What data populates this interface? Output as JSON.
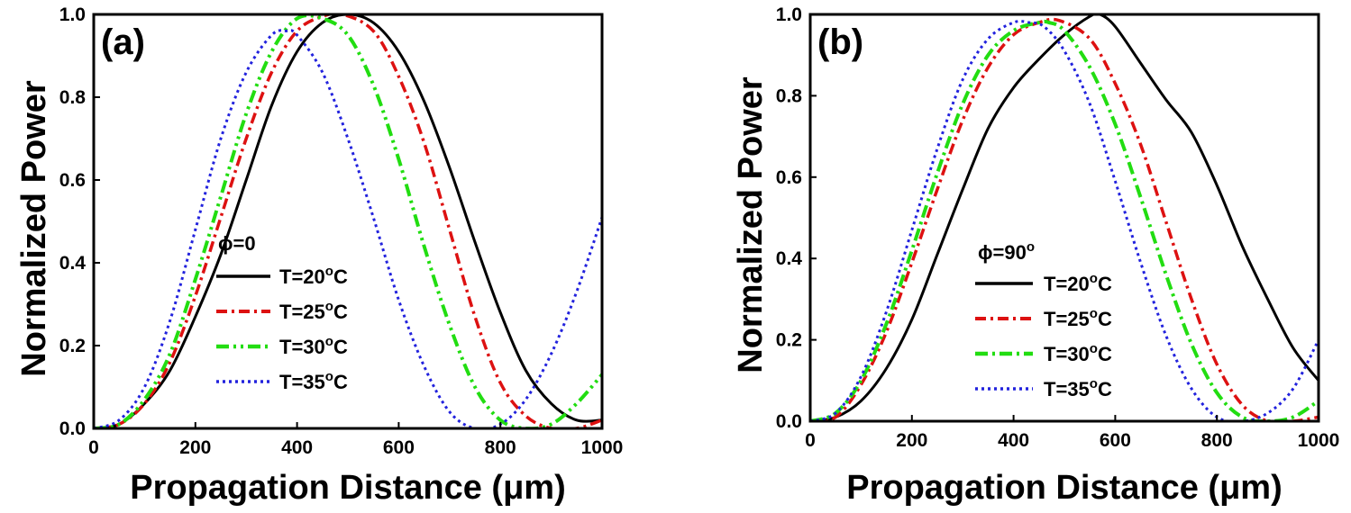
{
  "chart_data": [
    {
      "type": "line",
      "panel_label": "(a)",
      "xlabel": "Propagation Distance (μm)",
      "ylabel": "Normalized Power",
      "xlim": [
        0,
        1000
      ],
      "ylim": [
        0,
        1.0
      ],
      "xticks": [
        "0",
        "200",
        "400",
        "600",
        "800",
        "1000"
      ],
      "yticks": [
        "0.0",
        "0.2",
        "0.4",
        "0.6",
        "0.8",
        "1.0"
      ],
      "legend_title": "ϕ=0",
      "legend_location": "lower-left",
      "series": [
        {
          "name": "T=20°C",
          "label_main": "T=20",
          "label_sup": "o",
          "label_end": "C",
          "color": "#000000",
          "dash": "",
          "width": 3,
          "x": [
            0,
            50,
            100,
            150,
            200,
            250,
            300,
            350,
            400,
            450,
            500,
            550,
            600,
            650,
            700,
            750,
            800,
            850,
            900,
            950,
            1000
          ],
          "y": [
            0,
            0.01,
            0.06,
            0.14,
            0.27,
            0.42,
            0.6,
            0.78,
            0.91,
            0.98,
            1.0,
            0.98,
            0.91,
            0.79,
            0.63,
            0.45,
            0.28,
            0.14,
            0.06,
            0.02,
            0.02
          ]
        },
        {
          "name": "T=25°C",
          "label_main": "T=25",
          "label_sup": "o",
          "label_end": "C",
          "color": "#dd1111",
          "dash": "12 5 3 5",
          "width": 3.5,
          "x": [
            0,
            50,
            100,
            150,
            200,
            250,
            300,
            350,
            400,
            450,
            490,
            550,
            600,
            650,
            700,
            750,
            800,
            850,
            900,
            950,
            1000
          ],
          "y": [
            0,
            0.01,
            0.06,
            0.16,
            0.32,
            0.51,
            0.7,
            0.86,
            0.96,
            0.995,
            1.0,
            0.96,
            0.85,
            0.69,
            0.48,
            0.27,
            0.11,
            0.03,
            0.0,
            0.0,
            0.02
          ]
        },
        {
          "name": "T=30°C",
          "label_main": "T=30",
          "label_sup": "o",
          "label_end": "C",
          "color": "#22dd11",
          "dash": "14 5 3 5 3 5",
          "width": 4,
          "x": [
            0,
            50,
            100,
            150,
            200,
            250,
            300,
            350,
            400,
            450,
            500,
            550,
            600,
            650,
            700,
            750,
            800,
            850,
            900,
            950,
            1000
          ],
          "y": [
            0,
            0.01,
            0.07,
            0.18,
            0.36,
            0.56,
            0.76,
            0.91,
            0.99,
            0.99,
            0.95,
            0.83,
            0.65,
            0.44,
            0.25,
            0.1,
            0.02,
            0.0,
            0.01,
            0.06,
            0.13
          ]
        },
        {
          "name": "T=35°C",
          "label_main": "T=35",
          "label_sup": "o",
          "label_end": "C",
          "color": "#2222dd",
          "dash": "3 4",
          "width": 3,
          "x": [
            0,
            50,
            100,
            150,
            200,
            250,
            300,
            350,
            380,
            400,
            450,
            500,
            550,
            600,
            650,
            700,
            750,
            800,
            850,
            900,
            950,
            1000
          ],
          "y": [
            0,
            0.02,
            0.1,
            0.26,
            0.48,
            0.7,
            0.86,
            0.95,
            0.96,
            0.95,
            0.86,
            0.7,
            0.51,
            0.31,
            0.15,
            0.04,
            0.0,
            0.01,
            0.07,
            0.18,
            0.33,
            0.51
          ]
        }
      ]
    },
    {
      "type": "line",
      "panel_label": "(b)",
      "xlabel": "Propagation Distance (μm)",
      "ylabel": "Normalized Power",
      "xlim": [
        0,
        1000
      ],
      "ylim": [
        0,
        1.0
      ],
      "xticks": [
        "0",
        "200",
        "400",
        "600",
        "800",
        "1000"
      ],
      "yticks": [
        "0.0",
        "0.2",
        "0.4",
        "0.6",
        "0.8",
        "1.0"
      ],
      "legend_title": "ϕ=90",
      "legend_title_sup": "o",
      "legend_location": "lower-center",
      "series": [
        {
          "name": "T=20°C",
          "label_main": "T=20",
          "label_sup": "o",
          "label_end": "C",
          "color": "#000000",
          "dash": "",
          "width": 3,
          "x": [
            0,
            50,
            100,
            150,
            200,
            250,
            300,
            350,
            400,
            450,
            500,
            550,
            570,
            600,
            650,
            700,
            750,
            800,
            850,
            900,
            950,
            1000
          ],
          "y": [
            0,
            0.01,
            0.05,
            0.13,
            0.25,
            0.41,
            0.57,
            0.72,
            0.82,
            0.89,
            0.95,
            0.995,
            1.0,
            0.97,
            0.88,
            0.79,
            0.71,
            0.58,
            0.43,
            0.3,
            0.18,
            0.1
          ]
        },
        {
          "name": "T=25°C",
          "label_main": "T=25",
          "label_sup": "o",
          "label_end": "C",
          "color": "#dd1111",
          "dash": "12 5 3 5",
          "width": 3.5,
          "x": [
            0,
            50,
            100,
            150,
            200,
            250,
            300,
            350,
            400,
            450,
            490,
            550,
            600,
            650,
            700,
            750,
            800,
            850,
            900,
            950,
            1000
          ],
          "y": [
            0,
            0.01,
            0.09,
            0.22,
            0.39,
            0.57,
            0.74,
            0.87,
            0.95,
            0.98,
            0.985,
            0.94,
            0.83,
            0.68,
            0.49,
            0.3,
            0.14,
            0.04,
            0.0,
            0.0,
            0.01
          ]
        },
        {
          "name": "T=30°C",
          "label_main": "T=30",
          "label_sup": "o",
          "label_end": "C",
          "color": "#22dd11",
          "dash": "14 5 3 5",
          "width": 4,
          "x": [
            0,
            50,
            100,
            150,
            200,
            250,
            300,
            350,
            400,
            450,
            470,
            500,
            550,
            600,
            650,
            700,
            750,
            800,
            850,
            900,
            950,
            1000
          ],
          "y": [
            0,
            0.02,
            0.1,
            0.24,
            0.42,
            0.61,
            0.78,
            0.9,
            0.96,
            0.98,
            0.98,
            0.96,
            0.87,
            0.73,
            0.55,
            0.36,
            0.19,
            0.07,
            0.01,
            0.0,
            0.01,
            0.05
          ]
        },
        {
          "name": "T=35°C",
          "label_main": "T=35",
          "label_sup": "o",
          "label_end": "C",
          "color": "#2222dd",
          "dash": "3 4",
          "width": 3,
          "x": [
            0,
            50,
            100,
            150,
            200,
            250,
            300,
            350,
            400,
            430,
            460,
            500,
            550,
            600,
            650,
            700,
            750,
            800,
            850,
            900,
            950,
            1000
          ],
          "y": [
            0,
            0.02,
            0.11,
            0.27,
            0.47,
            0.67,
            0.84,
            0.94,
            0.98,
            0.98,
            0.97,
            0.91,
            0.78,
            0.59,
            0.39,
            0.21,
            0.08,
            0.01,
            0.0,
            0.02,
            0.08,
            0.2
          ]
        }
      ]
    }
  ]
}
